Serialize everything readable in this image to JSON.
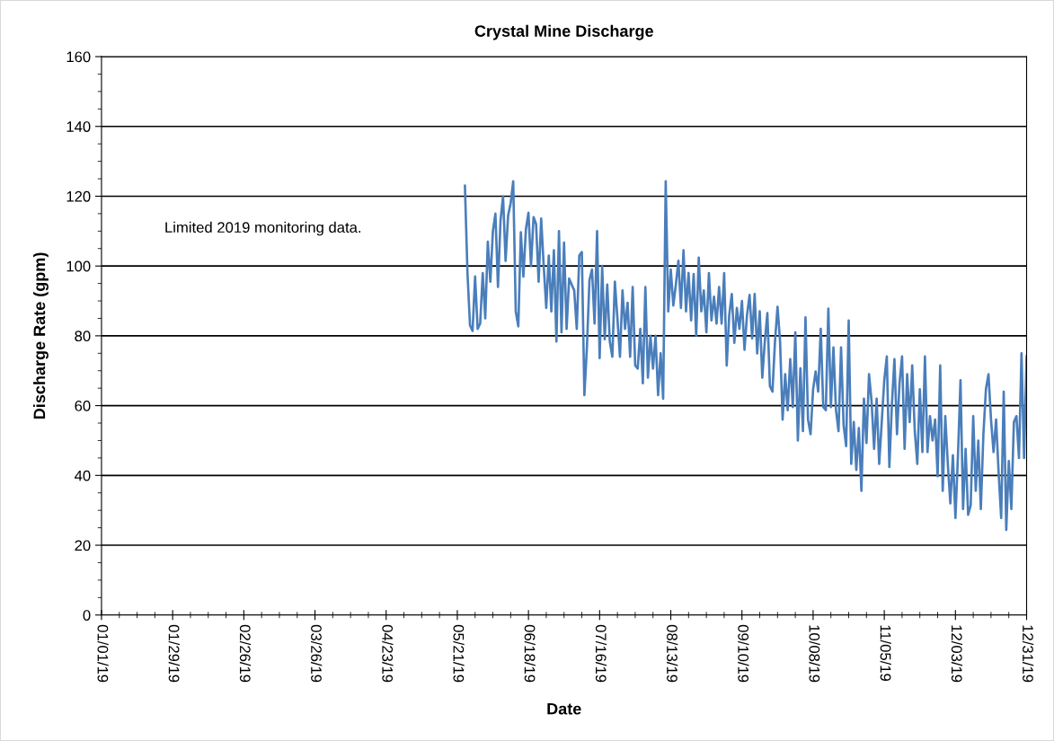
{
  "chart_data": {
    "type": "line",
    "title": "Crystal Mine Discharge",
    "xlabel": "Date",
    "ylabel": "Discharge Rate (gpm)",
    "annotations": [
      "Limited 2019 monitoring data."
    ],
    "xlim": [
      "2019-01-01",
      "2019-12-31"
    ],
    "xticks": [
      {
        "value": "2019-01-01",
        "label": "01/01/19"
      },
      {
        "value": "2019-01-29",
        "label": "01/29/19"
      },
      {
        "value": "2019-02-26",
        "label": "02/26/19"
      },
      {
        "value": "2019-03-26",
        "label": "03/26/19"
      },
      {
        "value": "2019-04-23",
        "label": "04/23/19"
      },
      {
        "value": "2019-05-21",
        "label": "05/21/19"
      },
      {
        "value": "2019-06-18",
        "label": "06/18/19"
      },
      {
        "value": "2019-07-16",
        "label": "07/16/19"
      },
      {
        "value": "2019-08-13",
        "label": "08/13/19"
      },
      {
        "value": "2019-09-10",
        "label": "09/10/19"
      },
      {
        "value": "2019-10-08",
        "label": "10/08/19"
      },
      {
        "value": "2019-11-05",
        "label": "11/05/19"
      },
      {
        "value": "2019-12-03",
        "label": "12/03/19"
      },
      {
        "value": "2019-12-31",
        "label": "12/31/19"
      }
    ],
    "ylim": [
      0,
      160
    ],
    "yticks": [
      0,
      20,
      40,
      60,
      80,
      100,
      120,
      140,
      160
    ],
    "grid": "y",
    "marker": "none",
    "line_style": "solid",
    "series": [
      {
        "color": "#4a7ebb",
        "x": [
          "2019-05-24",
          "2019-05-25",
          "2019-05-26",
          "2019-05-27",
          "2019-05-28",
          "2019-05-29",
          "2019-05-30",
          "2019-05-31",
          "2019-06-01",
          "2019-06-02",
          "2019-06-03",
          "2019-06-04",
          "2019-06-05",
          "2019-06-06",
          "2019-06-07",
          "2019-06-08",
          "2019-06-09",
          "2019-06-10",
          "2019-06-11",
          "2019-06-12",
          "2019-06-13",
          "2019-06-14",
          "2019-06-15",
          "2019-06-16",
          "2019-06-17",
          "2019-06-18",
          "2019-06-19",
          "2019-06-20",
          "2019-06-21",
          "2019-06-22",
          "2019-06-23",
          "2019-06-24",
          "2019-06-25",
          "2019-06-26",
          "2019-06-27",
          "2019-06-28",
          "2019-06-29",
          "2019-06-30",
          "2019-07-01",
          "2019-07-02",
          "2019-07-03",
          "2019-07-04",
          "2019-07-05",
          "2019-07-06",
          "2019-07-07",
          "2019-07-08",
          "2019-07-09",
          "2019-07-10",
          "2019-07-11",
          "2019-07-12",
          "2019-07-13",
          "2019-07-14",
          "2019-07-15",
          "2019-07-16",
          "2019-07-17",
          "2019-07-18",
          "2019-07-19",
          "2019-07-20",
          "2019-07-21",
          "2019-07-22",
          "2019-07-23",
          "2019-07-24",
          "2019-07-25",
          "2019-07-26",
          "2019-07-27",
          "2019-07-28",
          "2019-07-29",
          "2019-07-30",
          "2019-07-31",
          "2019-08-01",
          "2019-08-02",
          "2019-08-03",
          "2019-08-04",
          "2019-08-05",
          "2019-08-06",
          "2019-08-07",
          "2019-08-08",
          "2019-08-09",
          "2019-08-10",
          "2019-08-11",
          "2019-08-12",
          "2019-08-13",
          "2019-08-14",
          "2019-08-15",
          "2019-08-16",
          "2019-08-17",
          "2019-08-18",
          "2019-08-19",
          "2019-08-20",
          "2019-08-21",
          "2019-08-22",
          "2019-08-23",
          "2019-08-24",
          "2019-08-25",
          "2019-08-26",
          "2019-08-27",
          "2019-08-28",
          "2019-08-29",
          "2019-08-30",
          "2019-08-31",
          "2019-09-01",
          "2019-09-02",
          "2019-09-03",
          "2019-09-04",
          "2019-09-05",
          "2019-09-06",
          "2019-09-07",
          "2019-09-08",
          "2019-09-09",
          "2019-09-10",
          "2019-09-11",
          "2019-09-12",
          "2019-09-13",
          "2019-09-14",
          "2019-09-15",
          "2019-09-16",
          "2019-09-17",
          "2019-09-18",
          "2019-09-19",
          "2019-09-20",
          "2019-09-21",
          "2019-09-22",
          "2019-09-23",
          "2019-09-24",
          "2019-09-25",
          "2019-09-26",
          "2019-09-27",
          "2019-09-28",
          "2019-09-29",
          "2019-09-30",
          "2019-10-01",
          "2019-10-02",
          "2019-10-03",
          "2019-10-04",
          "2019-10-05",
          "2019-10-06",
          "2019-10-07",
          "2019-10-08",
          "2019-10-09",
          "2019-10-10",
          "2019-10-11",
          "2019-10-12",
          "2019-10-13",
          "2019-10-14",
          "2019-10-15",
          "2019-10-16",
          "2019-10-17",
          "2019-10-18",
          "2019-10-19",
          "2019-10-20",
          "2019-10-21",
          "2019-10-22",
          "2019-10-23",
          "2019-10-24",
          "2019-10-25",
          "2019-10-26",
          "2019-10-27",
          "2019-10-28",
          "2019-10-29",
          "2019-10-30",
          "2019-10-31",
          "2019-11-01",
          "2019-11-02",
          "2019-11-03",
          "2019-11-04",
          "2019-11-05",
          "2019-11-06",
          "2019-11-07",
          "2019-11-08",
          "2019-11-09",
          "2019-11-10",
          "2019-11-11",
          "2019-11-12",
          "2019-11-13",
          "2019-11-14",
          "2019-11-15",
          "2019-11-16",
          "2019-11-17",
          "2019-11-18",
          "2019-11-19",
          "2019-11-20",
          "2019-11-21",
          "2019-11-22",
          "2019-11-23",
          "2019-11-24",
          "2019-11-25",
          "2019-11-26",
          "2019-11-27",
          "2019-11-28",
          "2019-11-29",
          "2019-11-30",
          "2019-12-01",
          "2019-12-02",
          "2019-12-03",
          "2019-12-04",
          "2019-12-05",
          "2019-12-06",
          "2019-12-07",
          "2019-12-08",
          "2019-12-09",
          "2019-12-10",
          "2019-12-11",
          "2019-12-12",
          "2019-12-13",
          "2019-12-14",
          "2019-12-15",
          "2019-12-16",
          "2019-12-17",
          "2019-12-18",
          "2019-12-19",
          "2019-12-20",
          "2019-12-21",
          "2019-12-22",
          "2019-12-23",
          "2019-12-24",
          "2019-12-25",
          "2019-12-26",
          "2019-12-27",
          "2019-12-28",
          "2019-12-29",
          "2019-12-30",
          "2019-12-31"
        ],
        "values": [
          123,
          98,
          83,
          81.4,
          97,
          82,
          83.5,
          98,
          85,
          107,
          95.5,
          110,
          115,
          94,
          113,
          120,
          101.5,
          114.5,
          118,
          124.3,
          87,
          82.7,
          109.7,
          97,
          110.6,
          115.3,
          100,
          114,
          112,
          95.5,
          113.6,
          100,
          88,
          103,
          87,
          104.5,
          78.4,
          110,
          81,
          106.7,
          82,
          96.4,
          94.7,
          93,
          82,
          103,
          104,
          63,
          76.7,
          96,
          99,
          83.5,
          110,
          73.6,
          100,
          79,
          94.7,
          78.4,
          74,
          95.5,
          85,
          74,
          93,
          82,
          89.5,
          74,
          94,
          71.5,
          70.6,
          82,
          66.4,
          94,
          68,
          80,
          70.6,
          80,
          63,
          75,
          62,
          124.3,
          87,
          99,
          88.7,
          94.7,
          101.5,
          88,
          104.5,
          87,
          98,
          84.4,
          97.7,
          80,
          102.4,
          87,
          93,
          81,
          98,
          84.4,
          91.2,
          83.5,
          94,
          83.5,
          98,
          71.5,
          86,
          92,
          78,
          88,
          82,
          90,
          76,
          86,
          91.7,
          79.3,
          92,
          75,
          87,
          68,
          78.4,
          86.5,
          65.6,
          64,
          78.4,
          88.3,
          78.4,
          56,
          69,
          58.7,
          73.3,
          59.6,
          81,
          50,
          70.7,
          52.7,
          85.3,
          56,
          51.8,
          64.7,
          69.8,
          64,
          82,
          59.6,
          58.7,
          87.8,
          59.6,
          76.7,
          58.7,
          52.7,
          76.7,
          54.4,
          48.4,
          84.4,
          43.3,
          55.3,
          41.6,
          53.6,
          35.6,
          62,
          49.3,
          69,
          61.3,
          47.6,
          62,
          43.3,
          55.3,
          67.3,
          74.1,
          42.4,
          60.4,
          73.3,
          51.8,
          66.4,
          74.1,
          47.6,
          69,
          55.3,
          71.5,
          52.7,
          43.3,
          64.7,
          46.7,
          74.1,
          46.7,
          57,
          50,
          56,
          39.8,
          71.5,
          35.6,
          57,
          43.3,
          32,
          45.8,
          27.8,
          45.8,
          67.3,
          30.4,
          47.6,
          28.7,
          31.4,
          57,
          35.6,
          50,
          30.4,
          51.8,
          64.7,
          69,
          56,
          46.7,
          56,
          40.7,
          27.8,
          64,
          24.4,
          44.1,
          30.4,
          55.3,
          57,
          45,
          75,
          45,
          74.1
        ]
      }
    ]
  }
}
